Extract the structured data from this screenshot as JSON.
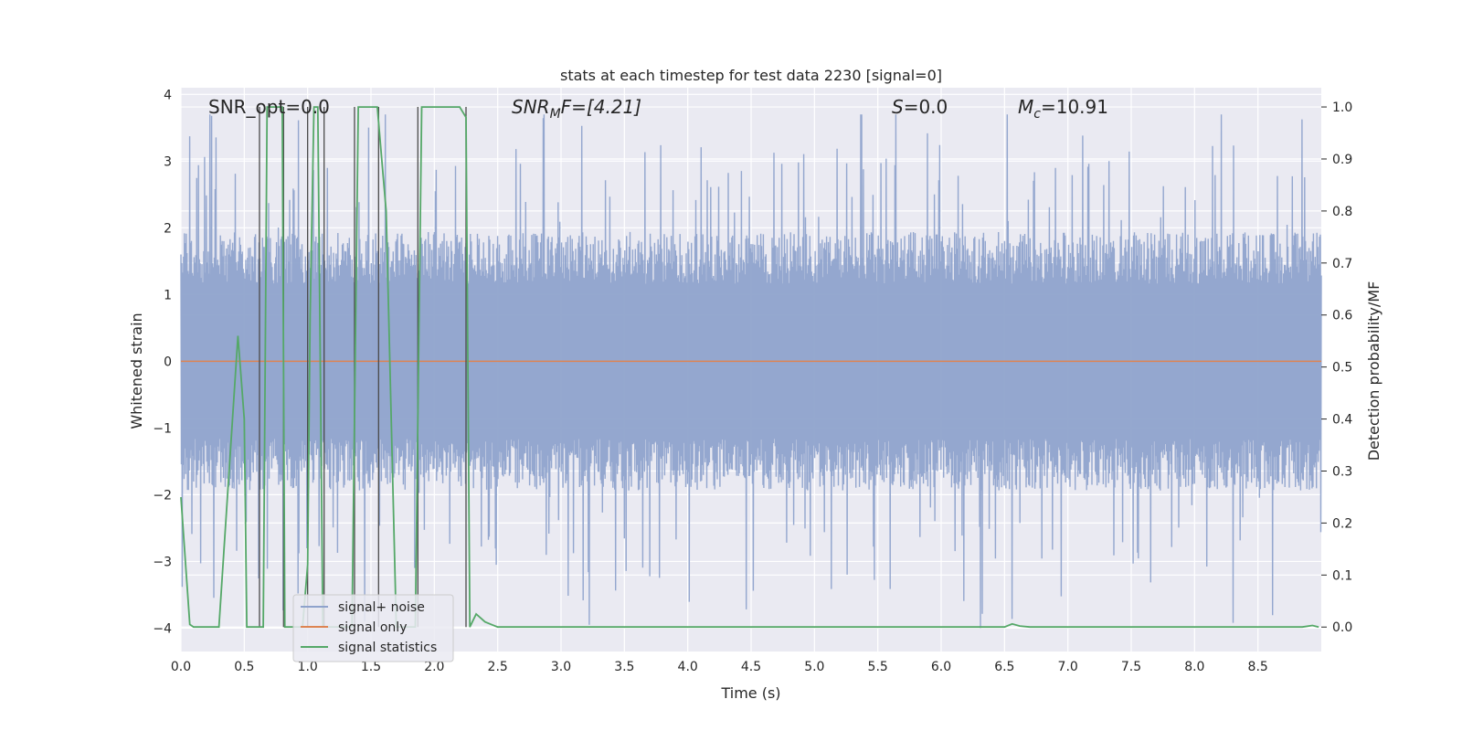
{
  "chart_data": {
    "type": "line",
    "title": "stats at each timestep for test data 2230 [signal=0]",
    "xlabel": "Time (s)",
    "ylabel_left": "Whitened strain",
    "ylabel_right": "Detection probability/MF",
    "xlim": [
      0.0,
      9.0
    ],
    "ylim_left": [
      -4.35,
      4.1
    ],
    "ylim_right": [
      -0.047,
      1.037
    ],
    "x_ticks": [
      "0.0",
      "0.5",
      "1.0",
      "1.5",
      "2.0",
      "2.5",
      "3.0",
      "3.5",
      "4.0",
      "4.5",
      "5.0",
      "5.5",
      "6.0",
      "6.5",
      "7.0",
      "7.5",
      "8.0",
      "8.5"
    ],
    "y_left_ticks": [
      "−4",
      "−3",
      "−2",
      "−1",
      "0",
      "1",
      "2",
      "3",
      "4"
    ],
    "y_right_ticks": [
      "0.0",
      "0.1",
      "0.2",
      "0.3",
      "0.4",
      "0.5",
      "0.6",
      "0.7",
      "0.8",
      "0.9",
      "1.0"
    ],
    "grid": true,
    "annotations": {
      "snr_opt": "SNR_opt=0.0",
      "snr_mf_base": "SNR",
      "snr_mf_sub": "M",
      "snr_mf_rest": "F=[4.21]",
      "s_sym": "S",
      "s_rest": "=0.0",
      "mc_sym": "M",
      "mc_sub": "c",
      "mc_rest": "=10.91"
    },
    "colors": {
      "signal_noise": "#8fa3cc",
      "signal_only": "#dd8452",
      "signal_stats": "#55a868",
      "vlines": "#4a4a4a",
      "plot_bg": "#eaeaf2",
      "grid": "#ffffff"
    },
    "series": [
      {
        "name": "signal+ noise",
        "axis": "left",
        "noise_envelope": {
          "typical_amplitude": 1.55,
          "max_positive": 3.7,
          "max_negative": -4.0
        }
      },
      {
        "name": "signal only",
        "axis": "left",
        "x": [
          0.0,
          9.0
        ],
        "y": [
          0.0,
          0.0
        ]
      },
      {
        "name": "signal statistics",
        "axis": "right",
        "x": [
          0.0,
          0.07,
          0.1,
          0.2,
          0.3,
          0.45,
          0.5,
          0.52,
          0.65,
          0.68,
          0.72,
          0.8,
          0.82,
          0.88,
          0.93,
          0.96,
          1.0,
          1.02,
          1.05,
          1.08,
          1.12,
          1.15,
          1.2,
          1.25,
          1.3,
          1.35,
          1.4,
          1.45,
          1.55,
          1.62,
          1.7,
          1.85,
          1.9,
          1.95,
          2.1,
          2.2,
          2.25,
          2.28,
          2.33,
          2.4,
          2.45,
          2.5,
          2.6,
          3.0,
          4.0,
          5.0,
          6.0,
          6.3,
          6.5,
          6.56,
          6.62,
          6.7,
          7.0,
          8.0,
          8.85,
          8.93,
          8.98
        ],
        "y": [
          0.25,
          0.005,
          0.0,
          0.0,
          0.0,
          0.56,
          0.4,
          0.0,
          0.0,
          1.0,
          1.0,
          1.0,
          0.0,
          0.0,
          0.0,
          0.0,
          0.12,
          0.6,
          1.0,
          1.0,
          0.0,
          0.0,
          0.0,
          0.0,
          0.0,
          0.0,
          1.0,
          1.0,
          1.0,
          0.8,
          0.0,
          0.0,
          1.0,
          1.0,
          1.0,
          1.0,
          0.98,
          0.0,
          0.025,
          0.01,
          0.005,
          0.0,
          0.0,
          0.0,
          0.0,
          0.0,
          0.0,
          0.0,
          0.0,
          0.006,
          0.002,
          0.0,
          0.0,
          0.0,
          0.0,
          0.003,
          0.0
        ]
      }
    ],
    "vertical_markers": {
      "x": [
        0.62,
        0.81,
        1.0,
        1.13,
        1.37,
        1.56,
        1.87,
        2.25
      ],
      "y_top": 1.0,
      "y_bottom": 0.0
    },
    "legend": {
      "placement": "lower-left",
      "entries": [
        "signal+ noise",
        "signal only",
        "signal statistics"
      ]
    }
  }
}
